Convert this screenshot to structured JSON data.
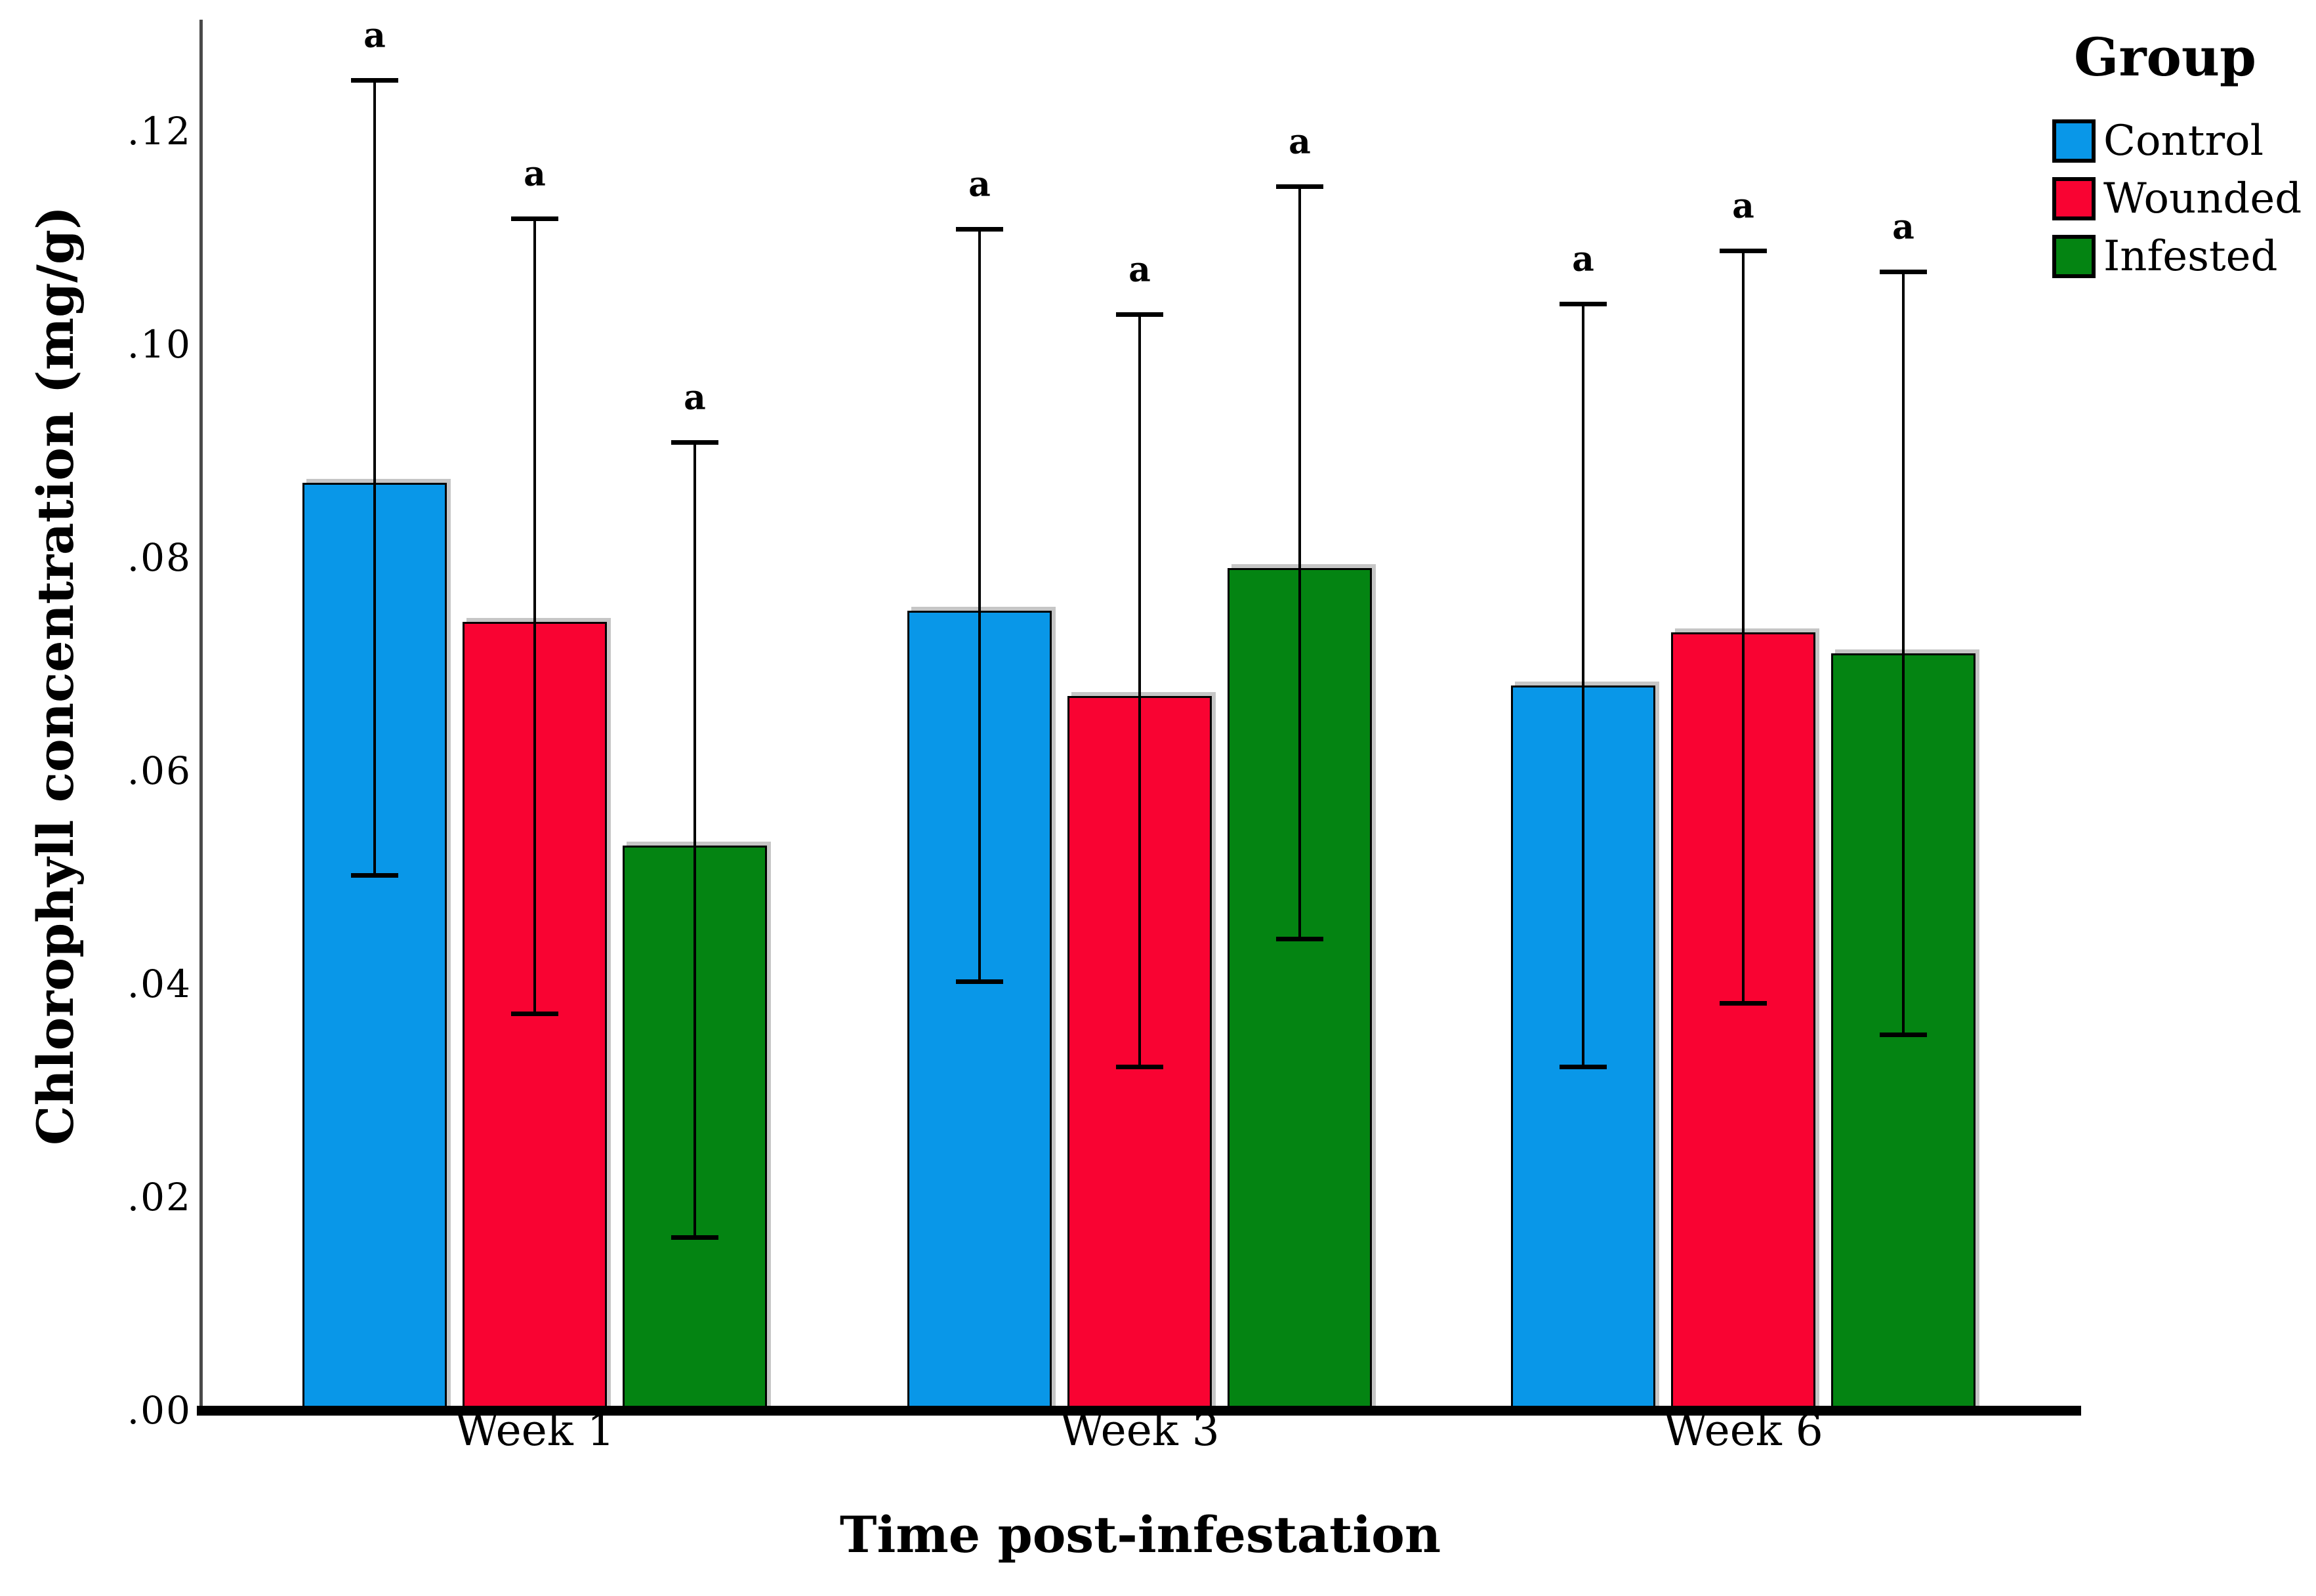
{
  "figure": {
    "background": "#ffffff",
    "text_color": "#000000",
    "axis_line_color": "#4a4a4a",
    "baseline_color": "#000000"
  },
  "chart_data": {
    "type": "bar",
    "title": "",
    "xlabel": "Time post-infestation",
    "ylabel": "Chlorophyll concentration (mg/g)",
    "legend_title": "Group",
    "legend_position": "top-right",
    "grid": false,
    "categories": [
      "Week 1",
      "Week 3",
      "Week 6"
    ],
    "series": [
      {
        "name": "Control",
        "color": "#0997e8",
        "values": [
          0.087,
          0.075,
          0.068
        ],
        "error_upper": [
          0.125,
          0.111,
          0.104
        ],
        "error_lower": [
          0.05,
          0.04,
          0.032
        ]
      },
      {
        "name": "Wounded",
        "color": "#f90332",
        "values": [
          0.074,
          0.067,
          0.073
        ],
        "error_upper": [
          0.112,
          0.103,
          0.109
        ],
        "error_lower": [
          0.037,
          0.032,
          0.038
        ]
      },
      {
        "name": "Infested",
        "color": "#048412",
        "values": [
          0.053,
          0.079,
          0.071
        ],
        "error_upper": [
          0.091,
          0.115,
          0.107
        ],
        "error_lower": [
          0.016,
          0.044,
          0.035
        ]
      }
    ],
    "sig_label": "a",
    "ylim": [
      0.0,
      0.13
    ],
    "yticks": [
      {
        "value": 0.0,
        "label": ".00"
      },
      {
        "value": 0.02,
        "label": ".02"
      },
      {
        "value": 0.04,
        "label": ".04"
      },
      {
        "value": 0.06,
        "label": ".06"
      },
      {
        "value": 0.08,
        "label": ".08"
      },
      {
        "value": 0.1,
        "label": ".10"
      },
      {
        "value": 0.12,
        "label": ".12"
      }
    ]
  }
}
